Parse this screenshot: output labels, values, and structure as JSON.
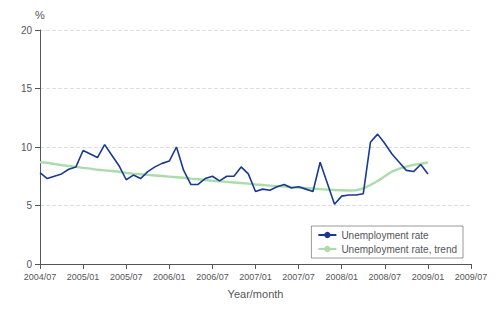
{
  "chart_data": {
    "type": "line",
    "xlabel": "Year/month",
    "ylabel": "%",
    "categories": [
      "2004/07",
      null,
      null,
      null,
      null,
      null,
      "2005/01",
      null,
      null,
      null,
      null,
      null,
      "2005/07",
      null,
      null,
      null,
      null,
      null,
      "2006/01",
      null,
      null,
      null,
      null,
      null,
      "2006/07",
      null,
      null,
      null,
      null,
      null,
      "2007/01",
      null,
      null,
      null,
      null,
      null,
      "2007/07",
      null,
      null,
      null,
      null,
      null,
      "2008/01",
      null,
      null,
      null,
      null,
      null,
      "2008/07",
      null,
      null,
      null,
      null,
      null,
      "2009/01",
      null,
      null,
      null,
      null,
      null,
      "2009/07"
    ],
    "series": [
      {
        "name": "Unemployment rate",
        "color": "#1a3a8f",
        "values": [
          7.8,
          7.3,
          7.5,
          7.7,
          8.1,
          8.3,
          9.7,
          9.4,
          9.1,
          10.2,
          9.3,
          8.4,
          7.2,
          7.6,
          7.3,
          7.9,
          8.3,
          8.6,
          8.8,
          10.0,
          8.0,
          6.8,
          6.8,
          7.3,
          7.5,
          7.1,
          7.5,
          7.5,
          8.3,
          7.7,
          6.2,
          6.4,
          6.3,
          6.6,
          6.8,
          6.5,
          6.6,
          6.4,
          6.2,
          8.7,
          6.9,
          5.1,
          5.8,
          5.9,
          5.9,
          6.0,
          10.4,
          11.1,
          10.3,
          9.4,
          8.7,
          8.0,
          7.9,
          8.5,
          7.7,
          null,
          null,
          null,
          null,
          null,
          null
        ]
      },
      {
        "name": "Unemployment rate, trend",
        "color": "#aaddaa",
        "values": [
          8.7,
          8.65,
          8.55,
          8.45,
          8.38,
          8.3,
          8.22,
          8.15,
          8.05,
          8.0,
          7.95,
          7.88,
          7.78,
          7.72,
          7.67,
          7.62,
          7.57,
          7.52,
          7.47,
          7.42,
          7.37,
          7.3,
          7.24,
          7.18,
          7.12,
          7.07,
          7.02,
          6.97,
          6.92,
          6.87,
          6.8,
          6.75,
          6.7,
          6.66,
          6.62,
          6.58,
          6.54,
          6.5,
          6.45,
          6.4,
          6.36,
          6.32,
          6.3,
          6.28,
          6.3,
          6.45,
          6.75,
          7.1,
          7.5,
          7.9,
          8.15,
          8.32,
          8.47,
          8.57,
          8.68,
          null,
          null,
          null,
          null,
          null,
          null
        ]
      }
    ],
    "ylim": [
      0,
      20
    ],
    "yticks": [
      0,
      5,
      10,
      15,
      20
    ],
    "grid": true,
    "legend": "lower right"
  }
}
